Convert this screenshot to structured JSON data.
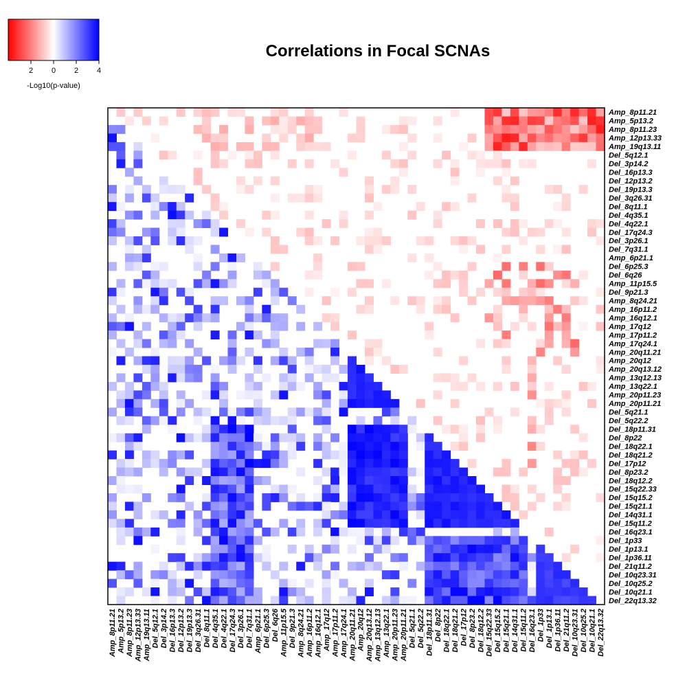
{
  "chart_data": {
    "type": "heatmap",
    "title": "Correlations in Focal SCNAs",
    "labels": [
      "Amp_8p11.21",
      "Amp_5p13.2",
      "Amp_8p11.23",
      "Amp_12p13.33",
      "Amp_19q13.11",
      "Del_5q12.1",
      "Del_3p14.2",
      "Del_16p13.3",
      "Del_12p13.2",
      "Del_19p13.3",
      "Del_3q26.31",
      "Del_8q11.1",
      "Del_4q35.1",
      "Del_4q22.1",
      "Del_17q24.3",
      "Del_3p26.1",
      "Del_7q31.1",
      "Amp_6p21.1",
      "Del_6p25.3",
      "Del_6q26",
      "Amp_11p15.5",
      "Del_9p21.3",
      "Amp_8q24.21",
      "Amp_16p11.2",
      "Amp_16q12.1",
      "Amp_17q12",
      "Amp_17p11.2",
      "Amp_17q24.1",
      "Amp_20q11.21",
      "Amp_20q12",
      "Amp_20q13.12",
      "Amp_13q12.13",
      "Amp_13q22.1",
      "Amp_20p11.23",
      "Amp_20p11.21",
      "Del_5q21.1",
      "Del_5q22.2",
      "Del_18p11.31",
      "Del_8p22",
      "Del_18q22.1",
      "Del_18q21.2",
      "Del_17p12",
      "Del_8p23.2",
      "Del_18q12.2",
      "Del_15q22.33",
      "Del_15q15.2",
      "Del_15q21.1",
      "Del_14q31.1",
      "Del_15q11.2",
      "Del_16q23.1",
      "Del_1p33",
      "Del_1p13.1",
      "Del_1p36.11",
      "Del_21q11.2",
      "Del_10q23.31",
      "Del_10q25.2",
      "Del_10q21.1",
      "Del_22q13.32"
    ],
    "legend": {
      "label": "-Log10(p-value)",
      "ticks": [
        "2",
        "0",
        "2",
        "4"
      ],
      "range": [
        -4,
        4
      ],
      "low_color": "#ff0000",
      "mid_color": "#ffffff",
      "high_color": "#0000ff"
    },
    "lower_triangle_meaning": "positive correlation (blue)",
    "upper_triangle_meaning": "negative correlation (red)"
  }
}
